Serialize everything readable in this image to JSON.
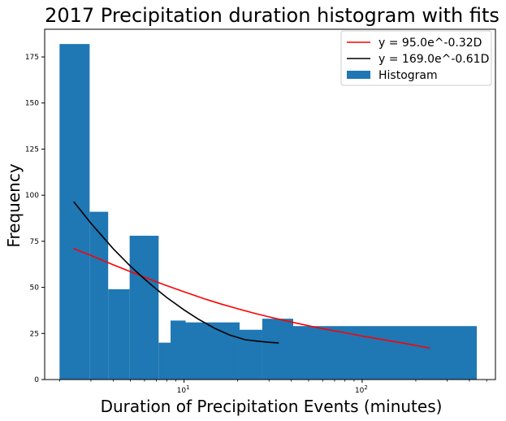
{
  "chart_data": {
    "type": "bar",
    "title": "2017 Precipitation duration histogram with fits",
    "xlabel": "Duration of Precipitation Events (minutes)",
    "ylabel": "Frequency",
    "xscale": "log",
    "xlim": [
      1.65,
      560
    ],
    "ylim": [
      0,
      190
    ],
    "yticks": [
      0,
      25,
      50,
      75,
      100,
      125,
      150,
      175
    ],
    "xticks": [
      {
        "value": 10,
        "base": "10",
        "exp": "1"
      },
      {
        "value": 100,
        "base": "10",
        "exp": "2"
      }
    ],
    "grid": false,
    "legend_position": "top-right",
    "histogram": {
      "name": "Histogram",
      "color": "#1f77b4",
      "bins": [
        {
          "x0": 2.0,
          "x1": 2.95,
          "value": 182
        },
        {
          "x0": 2.95,
          "x1": 3.75,
          "value": 91
        },
        {
          "x0": 3.75,
          "x1": 4.95,
          "value": 49
        },
        {
          "x0": 4.95,
          "x1": 7.2,
          "value": 78
        },
        {
          "x0": 7.2,
          "x1": 8.4,
          "value": 20
        },
        {
          "x0": 8.4,
          "x1": 10.2,
          "value": 32
        },
        {
          "x0": 10.2,
          "x1": 20.5,
          "value": 31
        },
        {
          "x0": 20.5,
          "x1": 27.5,
          "value": 27
        },
        {
          "x0": 27.5,
          "x1": 41.0,
          "value": 33
        },
        {
          "x0": 41.0,
          "x1": 440.0,
          "value": 29
        }
      ]
    },
    "series": [
      {
        "name": "y = 95.0e^-0.32D",
        "color": "#ff0000",
        "x": [
          2.4,
          3,
          4,
          5,
          6,
          7,
          8,
          10,
          13,
          16,
          20,
          25,
          30,
          40,
          50,
          65,
          80,
          100,
          130,
          160,
          200,
          240
        ],
        "y": [
          71,
          67.3,
          62.3,
          58.5,
          55.5,
          53,
          50.9,
          47.6,
          43.8,
          41.1,
          38.4,
          35.9,
          34,
          31.2,
          29.2,
          27,
          25.4,
          23.6,
          21.7,
          20.2,
          18.5,
          17
        ]
      },
      {
        "name": "y = 169.0e^-0.61D",
        "color": "#000000",
        "x": [
          2.4,
          3,
          4,
          5,
          6,
          7,
          8,
          10,
          12,
          15,
          18,
          22,
          26,
          30,
          34
        ],
        "y": [
          96.5,
          84.8,
          71,
          61.5,
          54.5,
          49,
          44.5,
          37.8,
          32.8,
          27.6,
          24.2,
          21.6,
          20.8,
          20.2,
          19.9
        ]
      }
    ]
  }
}
